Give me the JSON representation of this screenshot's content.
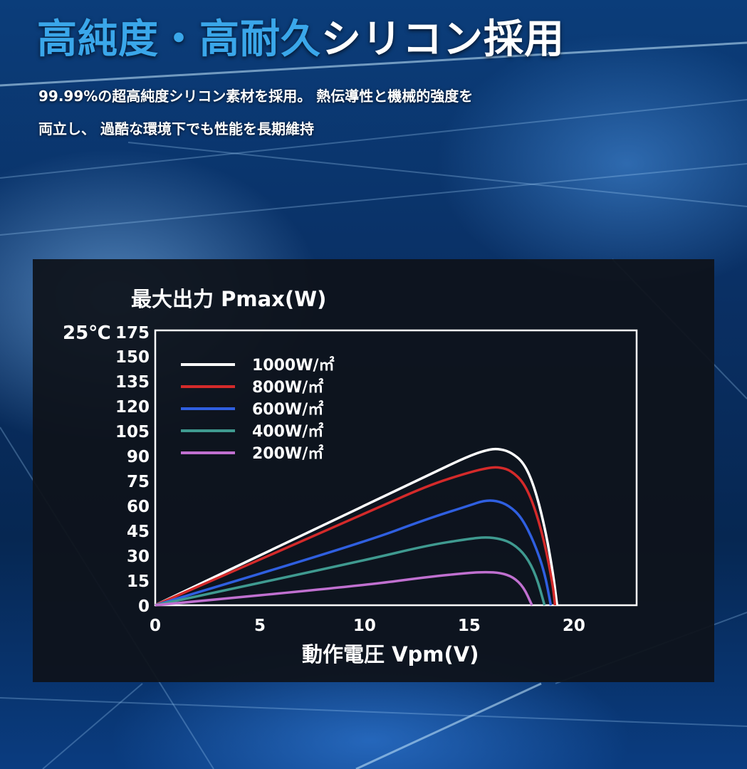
{
  "headline": {
    "part1": "高純度・高耐久",
    "part2": "シリコン採用"
  },
  "description": {
    "line1": "99.99%の超高純度シリコン素材を採用。 熱伝導性と機械的強度を",
    "line2": "両立し、 過酷な環境下でも性能を長期維持"
  },
  "colors": {
    "headline_accent": "#3aa7ea",
    "panel_bg": "#0e121a",
    "series_1000": "#ffffff",
    "series_800": "#d42a2a",
    "series_600": "#2f5fe0",
    "series_400": "#3f9a90",
    "series_200": "#c070d0"
  },
  "chart_data": {
    "type": "line",
    "title": "最大出力 Pmax(W)",
    "temperature_label": "25℃",
    "xlabel": "動作電圧 Vpm(V)",
    "ylabel": "最大出力 Pmax(W)",
    "xlim": [
      0,
      23
    ],
    "ylim": [
      0,
      175
    ],
    "x_ticks": [
      0,
      5,
      10,
      15,
      20
    ],
    "y_ticks": [
      0,
      15,
      30,
      45,
      60,
      75,
      90,
      105,
      120,
      135,
      150,
      175
    ],
    "grid": false,
    "legend_position": "top-left",
    "series": [
      {
        "name": "1000W/㎡",
        "color": "#ffffff",
        "points": [
          [
            0,
            0
          ],
          [
            10,
            60
          ],
          [
            13,
            78
          ],
          [
            15,
            90
          ],
          [
            16,
            94
          ],
          [
            16.5,
            94
          ],
          [
            17,
            92
          ],
          [
            17.6,
            86
          ],
          [
            18.1,
            72
          ],
          [
            18.6,
            48
          ],
          [
            19,
            20
          ],
          [
            19.2,
            0
          ]
        ]
      },
      {
        "name": "800W/㎡",
        "color": "#d42a2a",
        "points": [
          [
            0,
            0
          ],
          [
            10,
            55
          ],
          [
            13,
            72
          ],
          [
            15,
            80
          ],
          [
            16,
            83
          ],
          [
            16.5,
            83
          ],
          [
            17,
            81
          ],
          [
            17.6,
            74
          ],
          [
            18.1,
            60
          ],
          [
            18.6,
            38
          ],
          [
            19,
            12
          ],
          [
            19.1,
            0
          ]
        ]
      },
      {
        "name": "600W/㎡",
        "color": "#2f5fe0",
        "points": [
          [
            0,
            0
          ],
          [
            10,
            38
          ],
          [
            13,
            52
          ],
          [
            15,
            60
          ],
          [
            15.7,
            63
          ],
          [
            16.3,
            63
          ],
          [
            16.9,
            60
          ],
          [
            17.5,
            53
          ],
          [
            18.1,
            38
          ],
          [
            18.6,
            20
          ],
          [
            18.9,
            0
          ]
        ]
      },
      {
        "name": "400W/㎡",
        "color": "#3f9a90",
        "points": [
          [
            0,
            0
          ],
          [
            10,
            27
          ],
          [
            13,
            36
          ],
          [
            15,
            40
          ],
          [
            15.8,
            41
          ],
          [
            16.5,
            40
          ],
          [
            17.1,
            37
          ],
          [
            17.7,
            30
          ],
          [
            18.2,
            18
          ],
          [
            18.6,
            0
          ]
        ]
      },
      {
        "name": "200W/㎡",
        "color": "#c070d0",
        "points": [
          [
            0,
            0
          ],
          [
            10,
            12
          ],
          [
            13,
            17
          ],
          [
            15,
            19.5
          ],
          [
            15.8,
            20
          ],
          [
            16.5,
            19.5
          ],
          [
            17.1,
            17
          ],
          [
            17.6,
            11
          ],
          [
            18,
            0
          ]
        ]
      }
    ]
  }
}
